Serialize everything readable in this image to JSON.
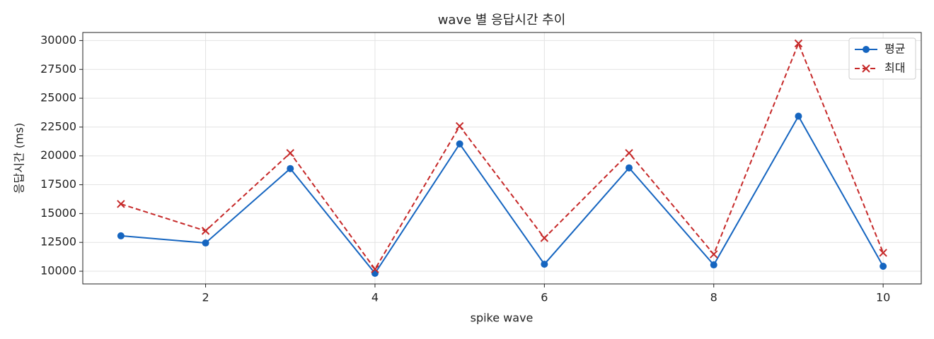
{
  "chart_data": {
    "type": "line",
    "title": "wave 별 응답시간 추이",
    "x_label": "spike wave",
    "y_label": "응답시간 (ms)",
    "x": [
      1,
      2,
      3,
      4,
      5,
      6,
      7,
      8,
      9,
      10
    ],
    "series": [
      {
        "name": "평균",
        "color": "#1565c0",
        "marker": "o",
        "dash": "solid",
        "values": [
          13070,
          12450,
          18900,
          9820,
          21040,
          10610,
          18960,
          10550,
          23440,
          10430
        ]
      },
      {
        "name": "최대",
        "color": "#c62828",
        "marker": "x",
        "dash": "dashed",
        "values": [
          15830,
          13500,
          20250,
          10180,
          22580,
          12880,
          20250,
          11470,
          29750,
          11600
        ]
      }
    ],
    "xlim": [
      0.55,
      10.45
    ],
    "xticks": [
      2,
      4,
      6,
      8,
      10
    ],
    "ylim": [
      8900,
      30700
    ],
    "yticks": [
      10000,
      12500,
      15000,
      17500,
      20000,
      22500,
      25000,
      27500,
      30000
    ],
    "grid": true,
    "legend": "upper right"
  }
}
